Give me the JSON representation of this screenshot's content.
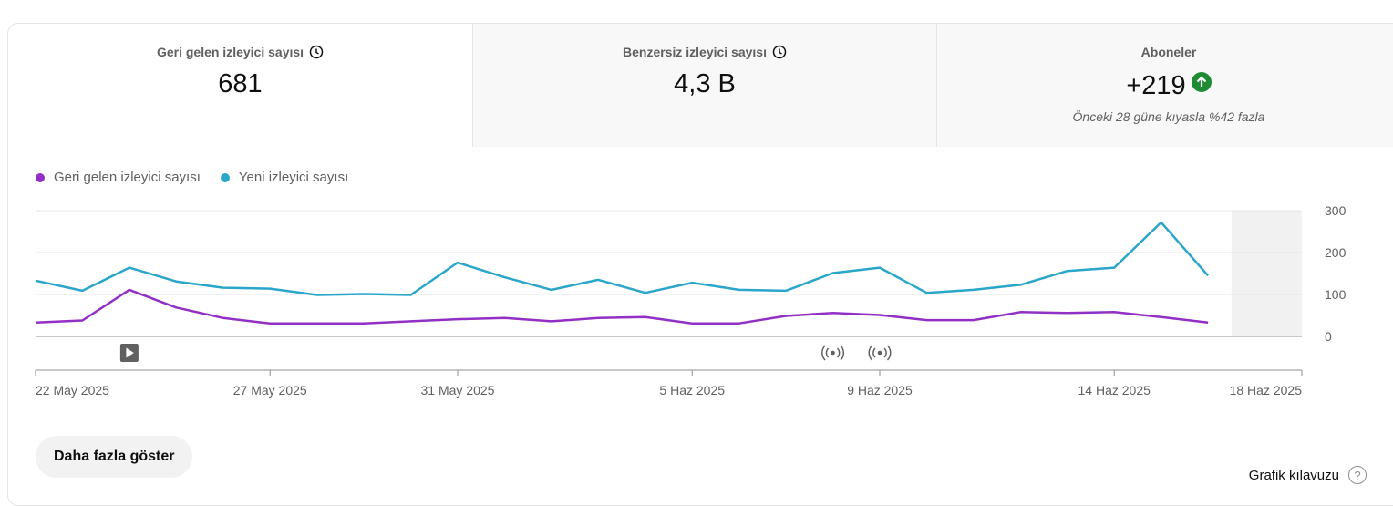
{
  "metrics": [
    {
      "label": "Geri gelen izleyici sayısı",
      "value": "681",
      "icon": "clock-icon"
    },
    {
      "label": "Benzersiz izleyici sayısı",
      "value": "4,3 B",
      "icon": "clock-icon"
    },
    {
      "label": "Aboneler",
      "value": "+219",
      "icon": "arrow-up-circle-icon",
      "note": "Önceki 28 güne kıyasla %42 fazla"
    }
  ],
  "more_button": "Daha fazla göster",
  "guide_link": "Grafik kılavuzu",
  "colors": {
    "returning": "#9230c5",
    "new": "#2ba6cb",
    "up": "#1f8c34",
    "highlight": "#f1f1f1"
  },
  "chart_data": {
    "type": "line",
    "start_label": "22 May 2025",
    "x": [
      "22 May 2025",
      "23 May 2025",
      "24 May 2025",
      "25 May 2025",
      "26 May 2025",
      "27 May 2025",
      "28 May 2025",
      "29 May 2025",
      "30 May 2025",
      "31 May 2025",
      "1 Haz 2025",
      "2 Haz 2025",
      "3 Haz 2025",
      "4 Haz 2025",
      "5 Haz 2025",
      "6 Haz 2025",
      "7 Haz 2025",
      "8 Haz 2025",
      "9 Haz 2025",
      "10 Haz 2025",
      "11 Haz 2025",
      "12 Haz 2025",
      "13 Haz 2025",
      "14 Haz 2025",
      "15 Haz 2025",
      "16 Haz 2025",
      "17 Haz 2025",
      "18 Haz 2025"
    ],
    "series": [
      {
        "name": "Geri gelen izleyici sayısı",
        "color": "#9230c5",
        "values": [
          33,
          38,
          111,
          69,
          44,
          31,
          31,
          31,
          36,
          41,
          44,
          36,
          44,
          46,
          31,
          31,
          49,
          56,
          51,
          39,
          39,
          58,
          56,
          58,
          46,
          33,
          null,
          null
        ]
      },
      {
        "name": "Yeni izleyici sayısı",
        "color": "#2ba6cb",
        "values": [
          133,
          109,
          164,
          131,
          116,
          114,
          99,
          101,
          99,
          176,
          141,
          111,
          135,
          104,
          128,
          111,
          109,
          151,
          164,
          104,
          111,
          123,
          156,
          164,
          272,
          145,
          null,
          null
        ]
      }
    ],
    "x_tick_labels": [
      "22 May 2025",
      "27 May 2025",
      "31 May 2025",
      "5 Haz 2025",
      "9 Haz 2025",
      "14 Haz 2025",
      "18 Haz 2025"
    ],
    "y_ticks": [
      0,
      100,
      200,
      300
    ],
    "ylim": [
      0,
      300
    ],
    "markers": [
      {
        "date": "24 May 2025",
        "icon": "video-play-icon"
      },
      {
        "date": "8 Haz 2025",
        "icon": "broadcast-icon"
      },
      {
        "date": "9 Haz 2025",
        "icon": "broadcast-icon"
      }
    ],
    "highlight_from": "17 Haz 2025",
    "grid": true,
    "legend": "top-left"
  }
}
